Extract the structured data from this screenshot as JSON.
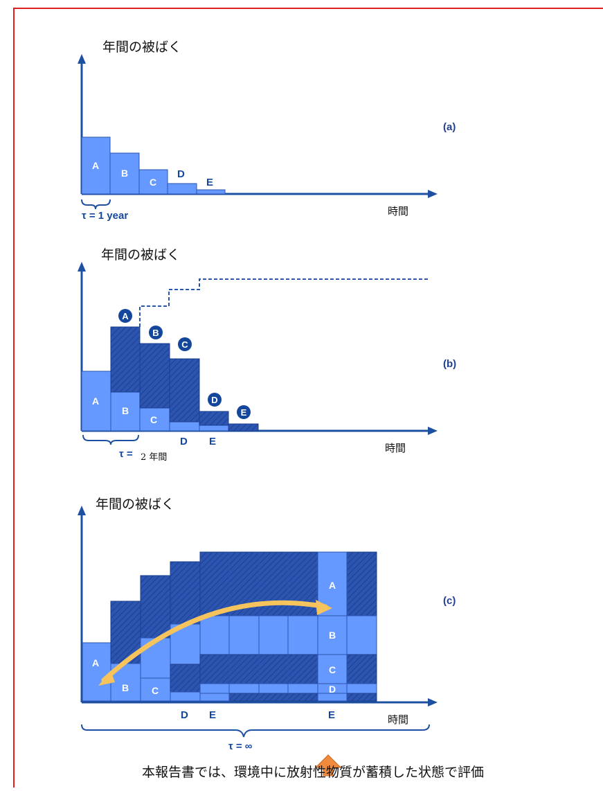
{
  "panel_a": {
    "ylabel": "年間の被ばく",
    "time_label": "時間",
    "tag": "(a)",
    "tau_label": "τ = 1 year",
    "blocks": [
      "A",
      "B",
      "C",
      "D",
      "E"
    ]
  },
  "panel_b": {
    "ylabel": "年間の被ばく",
    "time_label": "時間",
    "tag": "(b)",
    "tau_prefix": "τ =",
    "tau_value": "2 年間",
    "blocks": [
      "A",
      "B",
      "C"
    ],
    "below_labels": [
      "D",
      "E"
    ],
    "circled": [
      "A",
      "B",
      "C",
      "D",
      "E"
    ]
  },
  "panel_c": {
    "ylabel": "年間の被ばく",
    "time_label": "時間",
    "tag": "(c)",
    "tau_label": "τ = ∞",
    "left_labels": [
      "A",
      "B",
      "C"
    ],
    "below_labels": [
      "D",
      "E"
    ],
    "column_labels": [
      "A",
      "B",
      "C",
      "D"
    ],
    "column_below": "E"
  },
  "caption": "本報告書では、環境中に放射性物質が蓄積した状態で評価",
  "colors": {
    "frame": "#e02020",
    "axis": "#1e50a2",
    "fill": "#6699ff",
    "dark": "#2b55b0",
    "label": "#14479c",
    "arrow": "#f7c35c",
    "pointer": "#f08a3c"
  }
}
